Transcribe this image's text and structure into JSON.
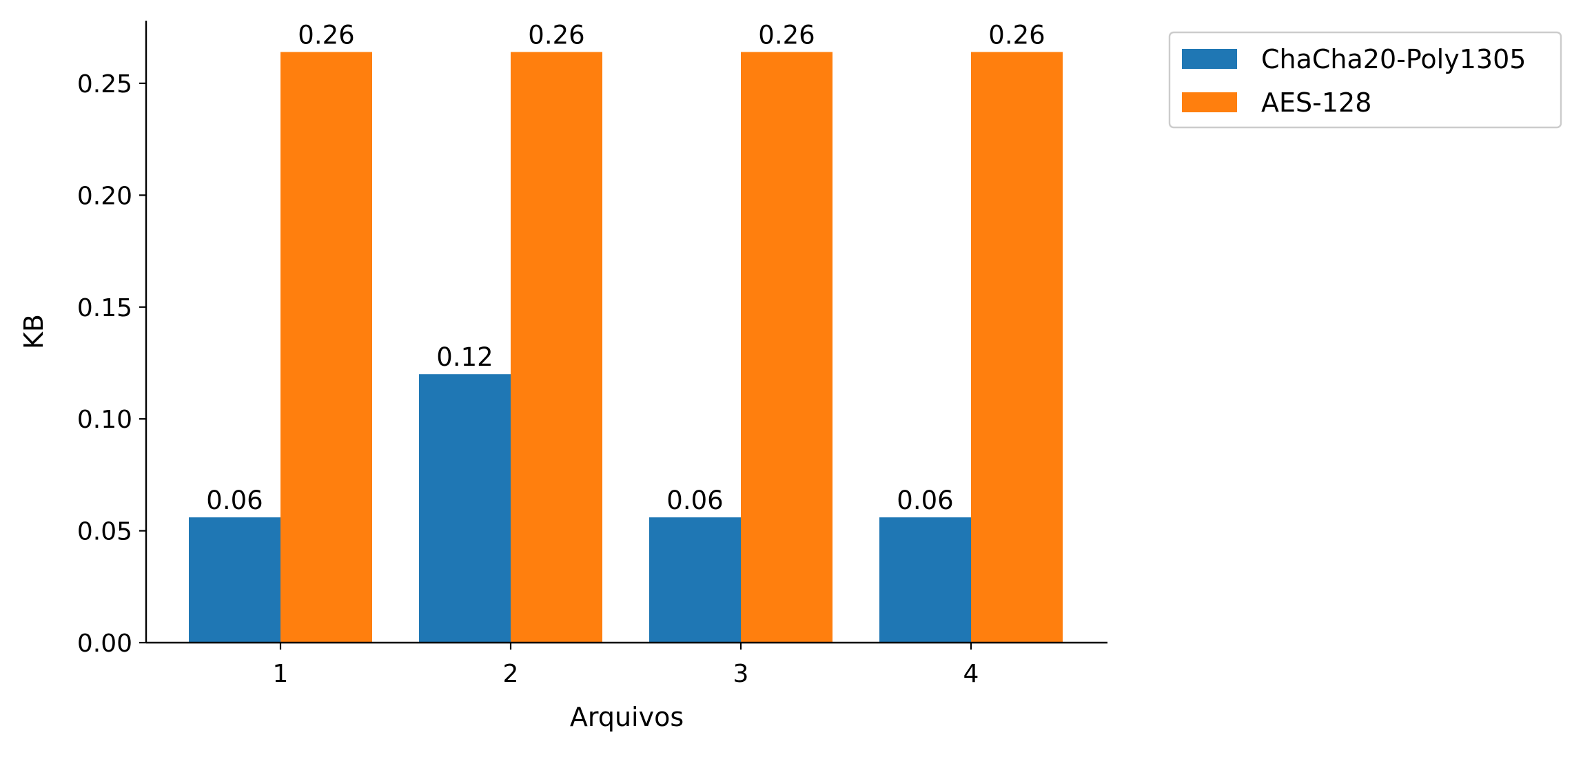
{
  "chart_data": {
    "type": "bar",
    "categories": [
      "1",
      "2",
      "3",
      "4"
    ],
    "series": [
      {
        "name": "ChaCha20-Poly1305",
        "values": [
          0.056,
          0.12,
          0.056,
          0.056
        ],
        "labels": [
          "0.06",
          "0.12",
          "0.06",
          "0.06"
        ],
        "color": "#1f77b4"
      },
      {
        "name": "AES-128",
        "values": [
          0.264,
          0.264,
          0.264,
          0.264
        ],
        "labels": [
          "0.26",
          "0.26",
          "0.26",
          "0.26"
        ],
        "color": "#ff7f0e"
      }
    ],
    "xlabel": "Arquivos",
    "ylabel": "KB",
    "ylim": [
      0,
      0.278
    ],
    "yticks": [
      0.0,
      0.05,
      0.1,
      0.15,
      0.2,
      0.25
    ],
    "ytick_labels": [
      "0.00",
      "0.05",
      "0.10",
      "0.15",
      "0.20",
      "0.25"
    ],
    "grid": false,
    "legend_position": "outside top-right"
  }
}
